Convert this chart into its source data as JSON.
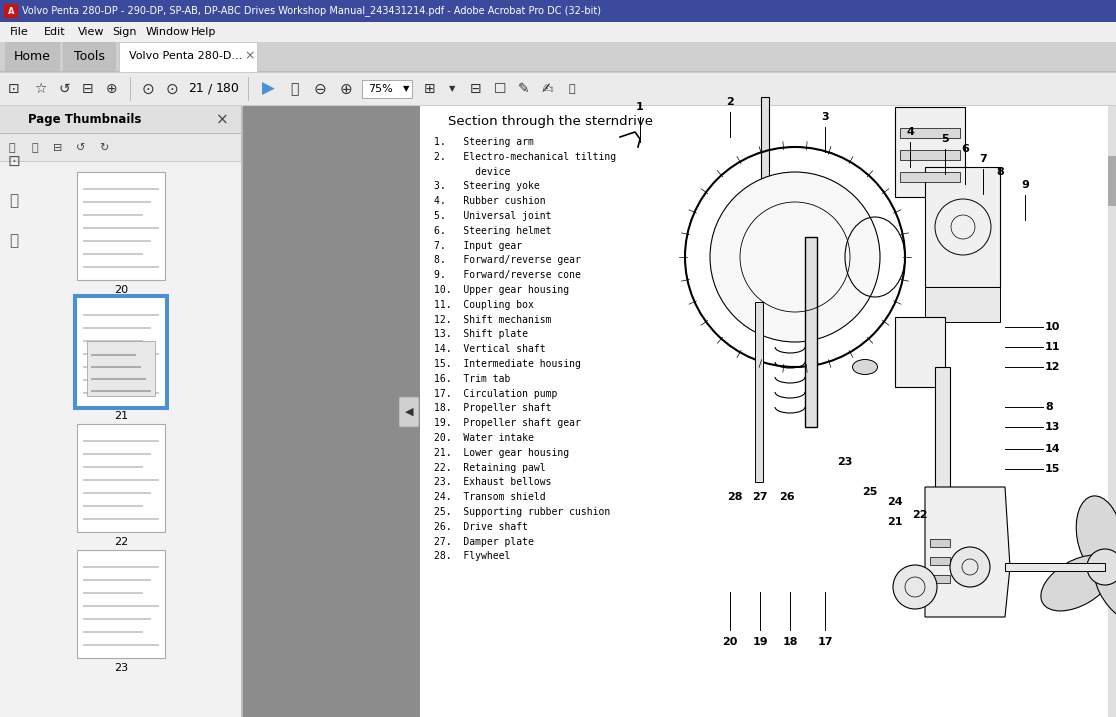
{
  "title_bar": "Volvo Penta 280-DP - 290-DP, SP-AB, DP-ABC Drives Workshop Manual_243431214.pdf - Adobe Acrobat Pro DC (32-bit)",
  "tab_text": "Volvo Penta 280-D...",
  "home_tab": "Home",
  "tools_tab": "Tools",
  "page_thumbnails_label": "Page Thumbnails",
  "page_num": "21",
  "total_pages": "180",
  "zoom_level": "75%",
  "menu_items": [
    "File",
    "Edit",
    "View",
    "Sign",
    "Window",
    "Help"
  ],
  "section_title": "Section through the sterndrive",
  "parts_list_col1": [
    "1.   Steering arm",
    "2.   Electro-mechanical tilting",
    "       device",
    "3.   Steering yoke",
    "4.   Rubber cushion",
    "5.   Universal joint",
    "6.   Steering helmet",
    "7.   Input gear",
    "8.   Forward/reverse gear",
    "9.   Forward/reverse cone",
    "10.  Upper gear housing",
    "11.  Coupling box",
    "12.  Shift mechanism",
    "13.  Shift plate",
    "14.  Vertical shaft",
    "15.  Intermediate housing",
    "16.  Trim tab",
    "17.  Circulation pump",
    "18.  Propeller shaft",
    "19.  Propeller shaft gear",
    "20.  Water intake",
    "21.  Lower gear housing",
    "22.  Retaining pawl",
    "23.  Exhaust bellows",
    "24.  Transom shield",
    "25.  Supporting rubber cushion",
    "26.  Drive shaft",
    "27.  Damper plate",
    "28.  Flywheel"
  ],
  "title_bar_color": "#3c4a9e",
  "menu_bar_color": "#f0f0f0",
  "tab_bar_color": "#d0d0d0",
  "active_tab_color": "#ffffff",
  "inactive_tab_color": "#c0c0c0",
  "toolbar_color": "#ebebeb",
  "sidebar_color": "#f2f2f2",
  "sidebar_header_color": "#e0e0e0",
  "gray_panel_color": "#8c8c8c",
  "content_color": "#ffffff",
  "thumb_border_active": "#4a90d9",
  "thumb_bg": "#ffffff",
  "page_labels": [
    "20",
    "21",
    "22",
    "23"
  ]
}
